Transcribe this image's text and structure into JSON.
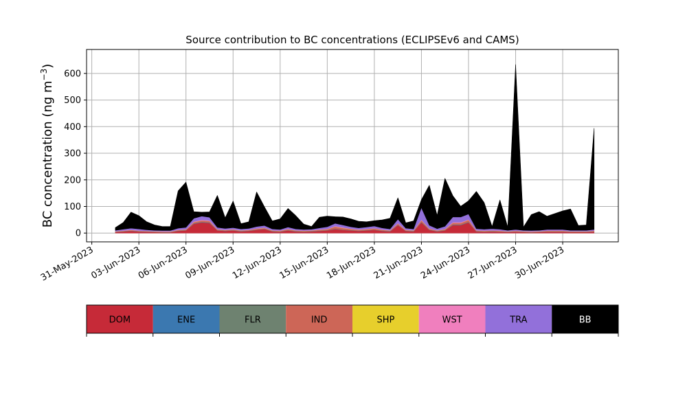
{
  "chart_data": {
    "type": "area",
    "stacked": true,
    "title": "Source contribution to BC concentrations (ECLIPSEv6 and CAMS)",
    "xlabel": "",
    "ylabel": "BC concentration (ng m",
    "ylabel_unit_sup": "−3",
    "ylabel_close": ")",
    "ylim": [
      -33,
      690
    ],
    "xlim": [
      "2023-05-30T16:00",
      "2023-07-03T13:00"
    ],
    "yticks": [
      0,
      100,
      200,
      300,
      400,
      500,
      600
    ],
    "xticks": [
      "2023-05-31",
      "2023-06-03",
      "2023-06-06",
      "2023-06-09",
      "2023-06-12",
      "2023-06-15",
      "2023-06-18",
      "2023-06-21",
      "2023-06-24",
      "2023-06-27",
      "2023-06-30"
    ],
    "xtick_labels": [
      "31-May-2023",
      "03-Jun-2023",
      "06-Jun-2023",
      "09-Jun-2023",
      "12-Jun-2023",
      "15-Jun-2023",
      "18-Jun-2023",
      "21-Jun-2023",
      "24-Jun-2023",
      "27-Jun-2023",
      "30-Jun-2023"
    ],
    "grid": true,
    "legend": "colorbar-below",
    "x": [
      "2023-06-01T12:00",
      "2023-06-02T00:00",
      "2023-06-02T12:00",
      "2023-06-03T00:00",
      "2023-06-03T12:00",
      "2023-06-04T00:00",
      "2023-06-04T12:00",
      "2023-06-05T00:00",
      "2023-06-05T12:00",
      "2023-06-06T00:00",
      "2023-06-06T12:00",
      "2023-06-07T00:00",
      "2023-06-07T12:00",
      "2023-06-08T00:00",
      "2023-06-08T12:00",
      "2023-06-09T00:00",
      "2023-06-09T12:00",
      "2023-06-10T00:00",
      "2023-06-10T12:00",
      "2023-06-11T00:00",
      "2023-06-11T12:00",
      "2023-06-12T00:00",
      "2023-06-12T12:00",
      "2023-06-13T00:00",
      "2023-06-13T12:00",
      "2023-06-14T00:00",
      "2023-06-14T12:00",
      "2023-06-15T00:00",
      "2023-06-15T12:00",
      "2023-06-16T00:00",
      "2023-06-16T12:00",
      "2023-06-17T00:00",
      "2023-06-17T12:00",
      "2023-06-18T00:00",
      "2023-06-18T12:00",
      "2023-06-19T00:00",
      "2023-06-19T12:00",
      "2023-06-20T00:00",
      "2023-06-20T12:00",
      "2023-06-21T00:00",
      "2023-06-21T12:00",
      "2023-06-22T00:00",
      "2023-06-22T12:00",
      "2023-06-23T00:00",
      "2023-06-23T12:00",
      "2023-06-24T00:00",
      "2023-06-24T12:00",
      "2023-06-25T00:00",
      "2023-06-25T12:00",
      "2023-06-26T00:00",
      "2023-06-26T12:00",
      "2023-06-27T00:00",
      "2023-06-27T12:00",
      "2023-06-28T00:00",
      "2023-06-28T12:00",
      "2023-06-29T00:00",
      "2023-06-29T12:00",
      "2023-06-30T00:00",
      "2023-06-30T12:00",
      "2023-07-01T00:00",
      "2023-07-01T12:00",
      "2023-07-02T00:00"
    ],
    "series": [
      {
        "name": "DOM",
        "color": "#c62a38",
        "values": [
          4,
          6,
          8,
          6,
          5,
          4,
          3,
          3,
          8,
          10,
          35,
          40,
          38,
          10,
          8,
          10,
          6,
          8,
          12,
          15,
          6,
          5,
          10,
          6,
          5,
          6,
          8,
          10,
          15,
          12,
          10,
          8,
          10,
          12,
          8,
          6,
          30,
          8,
          6,
          40,
          12,
          6,
          10,
          30,
          30,
          40,
          6,
          5,
          6,
          5,
          4,
          5,
          4,
          3,
          4,
          5,
          5,
          5,
          4,
          4,
          4,
          5
        ]
      },
      {
        "name": "ENE",
        "color": "#3b78b0",
        "values": [
          0.5,
          0.5,
          0.5,
          0.5,
          0.5,
          0.5,
          0.5,
          0.5,
          0.5,
          0.5,
          1,
          1,
          1,
          0.5,
          0.5,
          0.5,
          0.5,
          0.5,
          0.5,
          0.5,
          0.5,
          0.5,
          0.5,
          0.5,
          0.5,
          0.5,
          0.5,
          0.5,
          0.5,
          0.5,
          0.5,
          0.5,
          0.5,
          0.5,
          0.5,
          0.5,
          0.5,
          0.5,
          0.5,
          1,
          0.5,
          0.5,
          0.5,
          1,
          1,
          1,
          0.5,
          0.5,
          0.5,
          0.5,
          0.5,
          0.5,
          0.5,
          0.5,
          0.5,
          0.5,
          0.5,
          0.5,
          0.5,
          0.5,
          0.5,
          0.5
        ]
      },
      {
        "name": "FLR",
        "color": "#6e8270",
        "values": [
          0.5,
          0.5,
          0.5,
          0.5,
          0.5,
          0.5,
          0.5,
          0.5,
          0.5,
          0.5,
          1,
          1,
          1,
          0.5,
          0.5,
          0.5,
          0.5,
          0.5,
          0.5,
          0.5,
          0.5,
          0.5,
          0.5,
          0.5,
          0.5,
          0.5,
          0.5,
          0.5,
          0.5,
          0.5,
          0.5,
          0.5,
          0.5,
          0.5,
          0.5,
          0.5,
          0.5,
          0.5,
          0.5,
          1,
          0.5,
          0.5,
          0.5,
          1,
          1,
          1,
          0.5,
          0.5,
          0.5,
          0.5,
          0.5,
          0.5,
          0.5,
          0.5,
          0.5,
          0.5,
          0.5,
          0.5,
          0.5,
          0.5,
          0.5,
          0.5
        ]
      },
      {
        "name": "IND",
        "color": "#cd6657",
        "values": [
          1,
          1,
          2,
          1,
          1,
          1,
          1,
          1,
          2,
          2,
          4,
          5,
          5,
          2,
          2,
          2,
          2,
          2,
          3,
          3,
          2,
          2,
          3,
          2,
          2,
          2,
          3,
          3,
          8,
          6,
          4,
          3,
          3,
          4,
          3,
          2,
          5,
          2,
          2,
          6,
          3,
          2,
          3,
          6,
          6,
          7,
          2,
          2,
          2,
          2,
          1,
          2,
          1,
          1,
          1,
          2,
          2,
          2,
          1,
          1,
          1,
          2
        ]
      },
      {
        "name": "SHP",
        "color": "#e7cf2c",
        "values": [
          0.5,
          0.5,
          0.5,
          0.5,
          0.5,
          0.5,
          0.5,
          0.5,
          0.5,
          0.5,
          0.5,
          0.5,
          0.5,
          0.5,
          0.5,
          0.5,
          0.5,
          0.5,
          0.5,
          0.5,
          0.5,
          0.5,
          0.5,
          0.5,
          0.5,
          0.5,
          0.5,
          0.5,
          0.5,
          0.5,
          0.5,
          0.5,
          0.5,
          0.5,
          0.5,
          0.5,
          0.5,
          0.5,
          0.5,
          0.5,
          0.5,
          0.5,
          0.5,
          0.5,
          0.5,
          0.5,
          0.5,
          0.5,
          0.5,
          0.5,
          0.5,
          0.5,
          0.5,
          0.5,
          0.5,
          0.5,
          0.5,
          0.5,
          0.5,
          0.5,
          0.5,
          0.5
        ]
      },
      {
        "name": "WST",
        "color": "#f07fbe",
        "values": [
          1,
          1,
          1,
          1,
          1,
          1,
          1,
          1,
          1,
          1,
          2,
          2,
          2,
          1,
          1,
          1,
          1,
          1,
          1,
          1,
          1,
          1,
          1,
          1,
          1,
          1,
          1,
          1,
          2,
          2,
          1,
          1,
          1,
          1,
          1,
          1,
          1,
          1,
          1,
          2,
          1,
          1,
          1,
          2,
          2,
          2,
          1,
          1,
          1,
          1,
          1,
          1,
          1,
          1,
          1,
          1,
          1,
          1,
          1,
          1,
          1,
          1
        ]
      },
      {
        "name": "TRA",
        "color": "#9270da",
        "values": [
          3,
          5,
          6,
          6,
          4,
          3,
          3,
          3,
          6,
          7,
          12,
          14,
          12,
          7,
          5,
          6,
          5,
          5,
          7,
          8,
          5,
          4,
          7,
          5,
          4,
          4,
          6,
          8,
          10,
          9,
          7,
          6,
          7,
          8,
          6,
          5,
          15,
          6,
          5,
          45,
          12,
          6,
          10,
          20,
          20,
          20,
          6,
          5,
          6,
          5,
          3,
          4,
          3,
          3,
          3,
          4,
          4,
          4,
          3,
          3,
          3,
          4
        ]
      },
      {
        "name": "BB",
        "color": "#000000",
        "values": [
          10,
          25,
          60,
          50,
          30,
          20,
          15,
          15,
          140,
          170,
          25,
          15,
          20,
          120,
          40,
          100,
          20,
          25,
          130,
          70,
          30,
          40,
          70,
          50,
          20,
          10,
          40,
          40,
          25,
          30,
          30,
          25,
          20,
          20,
          30,
          40,
          80,
          20,
          30,
          30,
          150,
          50,
          180,
          80,
          40,
          50,
          140,
          100,
          8,
          110,
          12,
          620,
          12,
          60,
          70,
          50,
          60,
          70,
          80,
          18,
          20,
          380
        ]
      }
    ]
  }
}
